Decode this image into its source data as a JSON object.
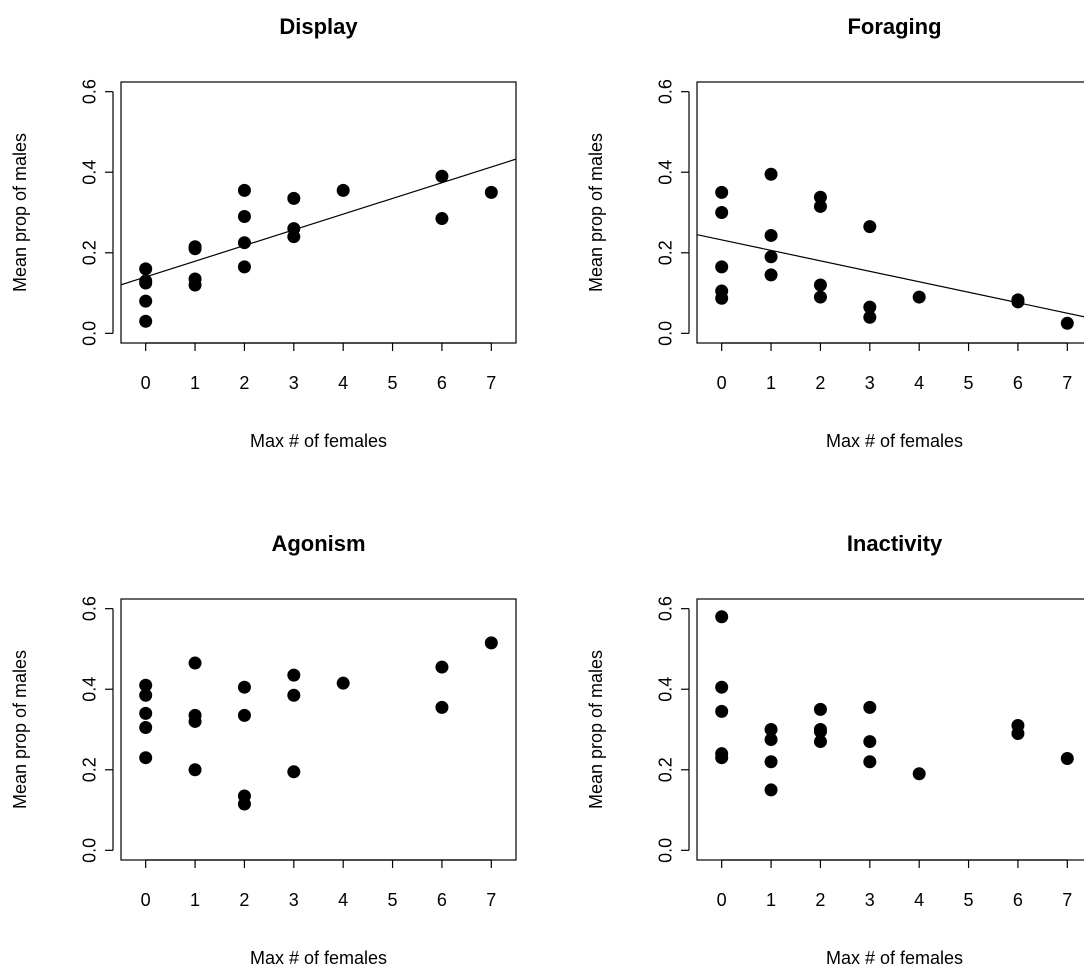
{
  "chart_data": [
    {
      "type": "scatter",
      "title": "Display",
      "xlabel": "Max # of females",
      "ylabel": "Mean prop of males",
      "color": "#000000",
      "x": [
        0,
        0,
        0,
        0,
        0,
        1,
        1,
        1,
        1,
        2,
        2,
        2,
        2,
        3,
        3,
        3,
        4,
        6,
        6,
        7
      ],
      "y": [
        0.16,
        0.13,
        0.125,
        0.08,
        0.03,
        0.215,
        0.21,
        0.135,
        0.12,
        0.355,
        0.29,
        0.225,
        0.165,
        0.335,
        0.26,
        0.24,
        0.355,
        0.39,
        0.285,
        0.35
      ],
      "fit": {
        "intercept": 0.14,
        "slope": 0.039
      },
      "xlim": [
        -0.5,
        7.5
      ],
      "ylim": [
        -0.024,
        0.624
      ],
      "xticks": [
        0,
        1,
        2,
        3,
        4,
        5,
        6,
        7
      ],
      "yticks": [
        {
          "value": 0,
          "label": "0.0"
        },
        0.2,
        0.4,
        0.6
      ]
    },
    {
      "type": "scatter",
      "title": "Foraging",
      "xlabel": "Max # of females",
      "ylabel": "Mean prop of males",
      "color": "#000000",
      "x": [
        0,
        0,
        0,
        0,
        0,
        1,
        1,
        1,
        1,
        2,
        2,
        2,
        2,
        3,
        3,
        3,
        4,
        6,
        6,
        7
      ],
      "y": [
        0.35,
        0.3,
        0.165,
        0.105,
        0.087,
        0.395,
        0.243,
        0.19,
        0.145,
        0.338,
        0.315,
        0.12,
        0.09,
        0.265,
        0.065,
        0.04,
        0.09,
        0.083,
        0.078,
        0.025
      ],
      "fit": {
        "intercept": 0.232,
        "slope": -0.026
      },
      "xlim": [
        -0.5,
        7.5
      ],
      "ylim": [
        -0.024,
        0.624
      ],
      "xticks": [
        0,
        1,
        2,
        3,
        4,
        5,
        6,
        7
      ],
      "yticks": [
        {
          "value": 0,
          "label": "0.0"
        },
        0.2,
        0.4,
        0.6
      ]
    },
    {
      "type": "scatter",
      "title": "Agonism",
      "xlabel": "Max # of females",
      "ylabel": "Mean prop of males",
      "color": "#000000",
      "x": [
        0,
        0,
        0,
        0,
        0,
        1,
        1,
        1,
        1,
        2,
        2,
        2,
        2,
        3,
        3,
        3,
        4,
        6,
        6,
        7
      ],
      "y": [
        0.41,
        0.385,
        0.34,
        0.305,
        0.23,
        0.465,
        0.335,
        0.32,
        0.2,
        0.405,
        0.335,
        0.135,
        0.115,
        0.435,
        0.385,
        0.195,
        0.415,
        0.455,
        0.355,
        0.515
      ],
      "xlim": [
        -0.5,
        7.5
      ],
      "ylim": [
        -0.024,
        0.624
      ],
      "xticks": [
        0,
        1,
        2,
        3,
        4,
        5,
        6,
        7
      ],
      "yticks": [
        {
          "value": 0,
          "label": "0.0"
        },
        0.2,
        0.4,
        0.6
      ]
    },
    {
      "type": "scatter",
      "title": "Inactivity",
      "xlabel": "Max # of females",
      "ylabel": "Mean prop of males",
      "color": "#000000",
      "x": [
        0,
        0,
        0,
        0,
        0,
        1,
        1,
        1,
        1,
        2,
        2,
        2,
        2,
        3,
        3,
        3,
        4,
        6,
        6,
        7
      ],
      "y": [
        0.58,
        0.405,
        0.345,
        0.24,
        0.23,
        0.3,
        0.275,
        0.22,
        0.15,
        0.35,
        0.3,
        0.295,
        0.27,
        0.355,
        0.27,
        0.22,
        0.19,
        0.31,
        0.29,
        0.228
      ],
      "xlim": [
        -0.5,
        7.5
      ],
      "ylim": [
        -0.024,
        0.624
      ],
      "xticks": [
        0,
        1,
        2,
        3,
        4,
        5,
        6,
        7
      ],
      "yticks": [
        {
          "value": 0,
          "label": "0.0"
        },
        0.2,
        0.4,
        0.6
      ]
    }
  ]
}
